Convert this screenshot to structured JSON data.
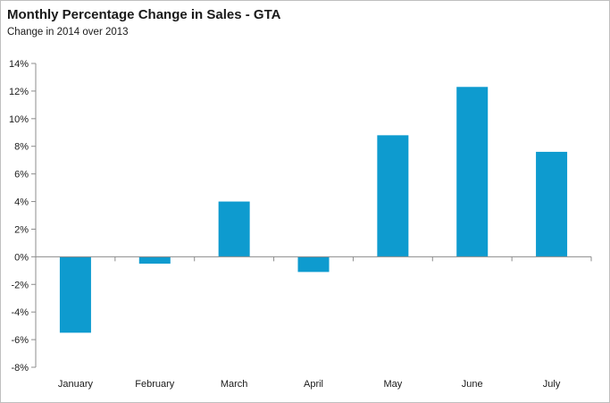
{
  "chart_data": {
    "type": "bar",
    "title": "Monthly Percentage Change in Sales - GTA",
    "subtitle": "Change in  2014 over 2013",
    "categories": [
      "January",
      "February",
      "March",
      "April",
      "May",
      "June",
      "July"
    ],
    "values": [
      -5.5,
      -0.5,
      4.0,
      -1.1,
      8.8,
      12.3,
      7.6
    ],
    "ylim": [
      -8,
      14
    ],
    "yticks": [
      14,
      12,
      10,
      8,
      6,
      4,
      2,
      0,
      -2,
      -4,
      -6,
      -8
    ],
    "ytick_labels": [
      "14%",
      "12%",
      "10%",
      "8%",
      "6%",
      "4%",
      "2%",
      "0%",
      "-2%",
      "-4%",
      "-6%",
      "-8%"
    ],
    "xlabel": "",
    "ylabel": "",
    "grid": false,
    "legend": "none",
    "bar_color": "#0e9bcf"
  }
}
